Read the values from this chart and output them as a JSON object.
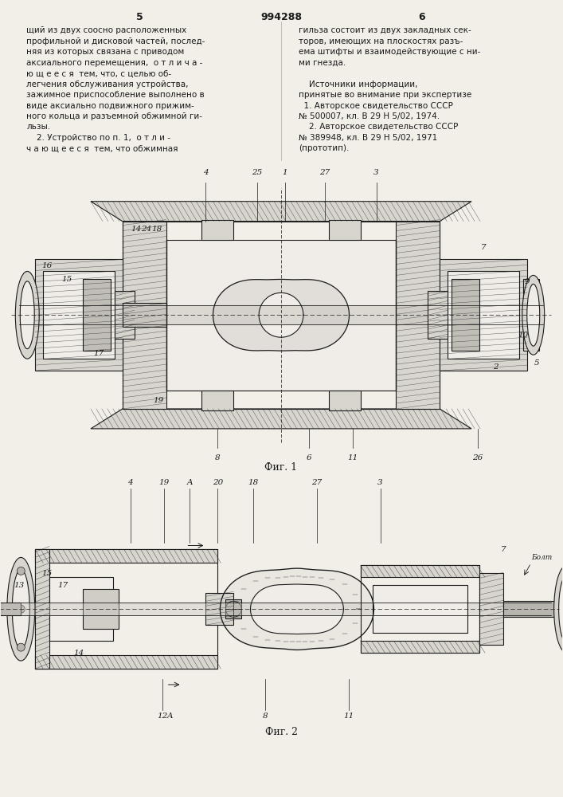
{
  "bg_color": "#f2efe9",
  "page_width": 7.07,
  "page_height": 10.0,
  "header_number": "994288",
  "left_page_num": "5",
  "right_page_num": "6",
  "left_column_text": [
    "щий из двух соосно расположенных",
    "профильной и дисковой частей, послед-",
    "няя из которых связана с приводом",
    "аксиального перемещения,  о т л и ч а -",
    "ю щ е е с я  тем, что, с целью об-",
    "легчения обслуживания устройства,",
    "зажимное приспособление выполнено в",
    "виде аксиально подвижного прижим-",
    "ного кольца и разъемной обжимной ги-",
    "льзы.",
    "    2. Устройство по п. 1,  о т л и -",
    "ч а ю щ е е с я  тем, что обжимная"
  ],
  "right_column_text": [
    "гильза состоит из двух закладных сек-",
    "торов, имеющих на плоскостях разъ-",
    "ема штифты и взаимодействующие с ни-",
    "ми гнезда.",
    "",
    "    Источники информации,",
    "принятые во внимание при экспертизе",
    "  1. Авторское свидетельство СССР",
    "№ 500007, кл. В 29 Н 5/02, 1974.",
    "    2. Авторское свидетельство СССР",
    "№ 389948, кл. В 29 Н 5/02, 1971",
    "(прототип)."
  ],
  "fig1_caption": "Фиг. 1",
  "fig2_caption": "Фиг. 2",
  "line_color": "#1a1a1a",
  "hatch_color": "#2a2a2a",
  "text_color": "#1a1a1a",
  "fill_light": "#d8d5cf",
  "fill_medium": "#b8b5af",
  "fill_white": "#f0ede8",
  "font_size_body": 7.5,
  "font_size_header": 9,
  "font_size_labels": 7.5
}
